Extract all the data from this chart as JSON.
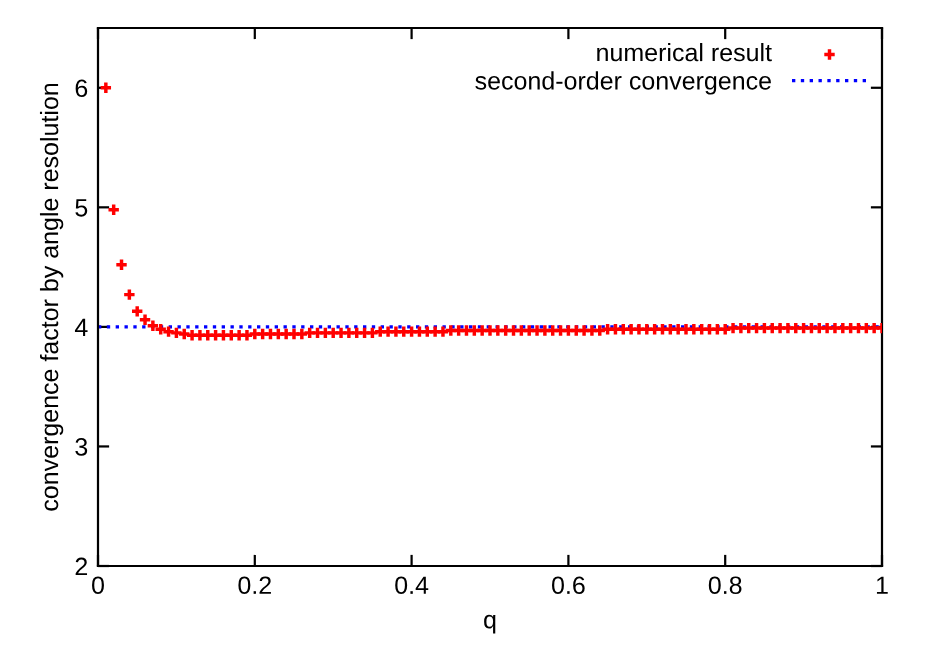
{
  "chart_data": {
    "type": "scatter",
    "xlabel": "q",
    "ylabel": "convergence factor by angle resolution",
    "xlim": [
      0,
      1
    ],
    "xticks": [
      0,
      0.2,
      0.4,
      0.6,
      0.8,
      1
    ],
    "ylim": [
      2,
      6.5
    ],
    "yticks": [
      2,
      3,
      4,
      5,
      6
    ],
    "grid": false,
    "legend": "top right",
    "marker": "cross",
    "series": [
      {
        "name": "numerical result",
        "color": "#ff0000",
        "x": [
          0.01,
          0.02,
          0.03,
          0.04,
          0.05,
          0.06,
          0.07,
          0.08,
          0.09,
          0.1,
          0.11,
          0.12,
          0.13,
          0.14,
          0.15,
          0.16,
          0.17,
          0.18,
          0.19,
          0.2,
          0.21,
          0.22,
          0.23,
          0.24,
          0.25,
          0.26,
          0.27,
          0.28,
          0.29,
          0.3,
          0.31,
          0.32,
          0.33,
          0.34,
          0.35,
          0.36,
          0.37,
          0.38,
          0.39,
          0.4,
          0.41,
          0.42,
          0.43,
          0.44,
          0.45,
          0.46,
          0.47,
          0.48,
          0.49,
          0.5,
          0.51,
          0.52,
          0.53,
          0.54,
          0.55,
          0.56,
          0.57,
          0.58,
          0.59,
          0.6,
          0.61,
          0.62,
          0.63,
          0.64,
          0.65,
          0.66,
          0.67,
          0.68,
          0.69,
          0.7,
          0.71,
          0.72,
          0.73,
          0.74,
          0.75,
          0.76,
          0.77,
          0.78,
          0.79,
          0.8,
          0.81,
          0.82,
          0.83,
          0.84,
          0.85,
          0.86,
          0.87,
          0.88,
          0.89,
          0.9,
          0.91,
          0.92,
          0.93,
          0.94,
          0.95,
          0.96,
          0.97,
          0.98,
          0.99,
          1.0
        ],
        "values": [
          6.0,
          4.98,
          4.52,
          4.27,
          4.13,
          4.06,
          4.01,
          3.98,
          3.96,
          3.95,
          3.94,
          3.93,
          3.93,
          3.93,
          3.93,
          3.93,
          3.93,
          3.93,
          3.93,
          3.94,
          3.94,
          3.94,
          3.94,
          3.94,
          3.94,
          3.94,
          3.95,
          3.95,
          3.95,
          3.95,
          3.95,
          3.95,
          3.95,
          3.95,
          3.95,
          3.96,
          3.96,
          3.96,
          3.96,
          3.96,
          3.96,
          3.96,
          3.96,
          3.96,
          3.97,
          3.97,
          3.97,
          3.97,
          3.97,
          3.97,
          3.97,
          3.97,
          3.97,
          3.97,
          3.97,
          3.97,
          3.97,
          3.97,
          3.97,
          3.97,
          3.97,
          3.97,
          3.97,
          3.97,
          3.98,
          3.98,
          3.98,
          3.98,
          3.98,
          3.98,
          3.98,
          3.98,
          3.98,
          3.98,
          3.98,
          3.98,
          3.98,
          3.98,
          3.98,
          3.98,
          3.99,
          3.99,
          3.99,
          3.99,
          3.99,
          3.99,
          3.99,
          3.99,
          3.99,
          3.99,
          3.99,
          3.99,
          3.99,
          3.99,
          3.99,
          3.99,
          3.99,
          3.99,
          3.99,
          3.99
        ]
      },
      {
        "name": "second-order convergence",
        "type": "line",
        "line_style": "dotted",
        "marker": "none",
        "color": "#0000ff",
        "x": [
          0,
          1
        ],
        "values": [
          4,
          4
        ]
      }
    ]
  }
}
